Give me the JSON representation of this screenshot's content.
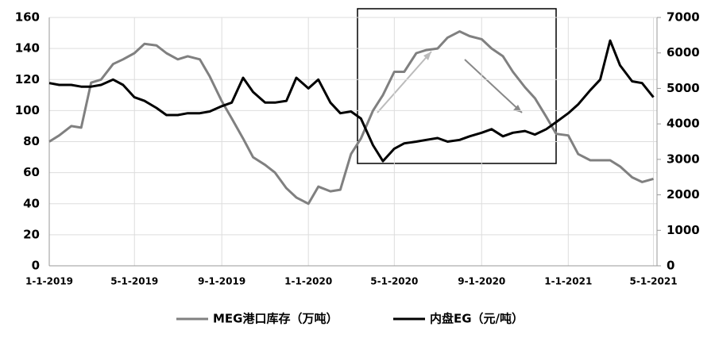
{
  "chart_data": {
    "type": "line",
    "x": [
      "1-1-2019",
      "1-15-2019",
      "2-1-2019",
      "2-15-2019",
      "3-1-2019",
      "3-15-2019",
      "4-1-2019",
      "4-15-2019",
      "5-1-2019",
      "5-15-2019",
      "6-1-2019",
      "6-15-2019",
      "7-1-2019",
      "7-15-2019",
      "8-1-2019",
      "8-15-2019",
      "9-1-2019",
      "9-15-2019",
      "10-1-2019",
      "10-15-2019",
      "11-1-2019",
      "11-15-2019",
      "12-1-2019",
      "12-15-2019",
      "1-1-2020",
      "1-15-2020",
      "2-1-2020",
      "2-15-2020",
      "3-1-2020",
      "3-15-2020",
      "4-1-2020",
      "4-15-2020",
      "5-1-2020",
      "5-15-2020",
      "6-1-2020",
      "6-15-2020",
      "7-1-2020",
      "7-15-2020",
      "8-1-2020",
      "8-15-2020",
      "9-1-2020",
      "9-15-2020",
      "10-1-2020",
      "10-15-2020",
      "11-1-2020",
      "11-15-2020",
      "12-1-2020",
      "12-15-2020",
      "1-1-2021",
      "1-15-2021",
      "2-1-2021",
      "2-15-2021",
      "3-1-2021",
      "3-15-2021",
      "4-1-2021",
      "4-15-2021",
      "5-1-2021"
    ],
    "series": [
      {
        "name": "MEG港口库存（万吨）",
        "color": "#808080",
        "values": [
          80,
          84,
          90,
          89,
          118,
          120,
          130,
          133,
          137,
          143,
          142,
          137,
          133,
          135,
          133,
          122,
          106,
          95,
          82,
          70,
          65,
          60,
          50,
          44,
          40,
          51,
          48,
          49,
          72,
          82,
          100,
          110,
          125,
          125,
          137,
          139,
          140,
          147,
          151,
          148,
          146,
          140,
          135,
          125,
          115,
          108,
          96,
          85,
          84,
          72,
          68,
          68,
          68,
          64,
          57,
          54,
          56
        ]
      },
      {
        "name": "内盘EG（元/吨）",
        "color": "#000000",
        "axis": "y2",
        "values": [
          5150,
          5100,
          5100,
          5050,
          5050,
          5100,
          5250,
          5100,
          4750,
          4650,
          4450,
          4250,
          4250,
          4300,
          4300,
          4350,
          4500,
          4600,
          5300,
          4900,
          4600,
          4600,
          4650,
          5300,
          5000,
          5250,
          4600,
          4300,
          4350,
          4150,
          3400,
          2950,
          3300,
          3450,
          3500,
          3550,
          3600,
          3500,
          3550,
          3650,
          3750,
          3850,
          3650,
          3750,
          3800,
          3700,
          3850,
          4050,
          4300,
          4550,
          4950,
          5250,
          6350,
          5650,
          5200,
          5150,
          4750
        ]
      }
    ],
    "xlim": [
      "1-1-2019",
      "5-6-2021"
    ],
    "xticks": [
      "1-1-2019",
      "5-1-2019",
      "9-1-2019",
      "1-1-2020",
      "5-1-2020",
      "9-1-2020",
      "1-1-2021",
      "5-1-2021"
    ],
    "ylim": [
      0,
      160
    ],
    "yticks": [
      0,
      20,
      40,
      60,
      80,
      100,
      120,
      140,
      160
    ],
    "y2lim": [
      0,
      7000
    ],
    "y2ticks": [
      0,
      1000,
      2000,
      3000,
      4000,
      5000,
      6000,
      7000
    ],
    "grid": true,
    "legend": "bottom"
  }
}
